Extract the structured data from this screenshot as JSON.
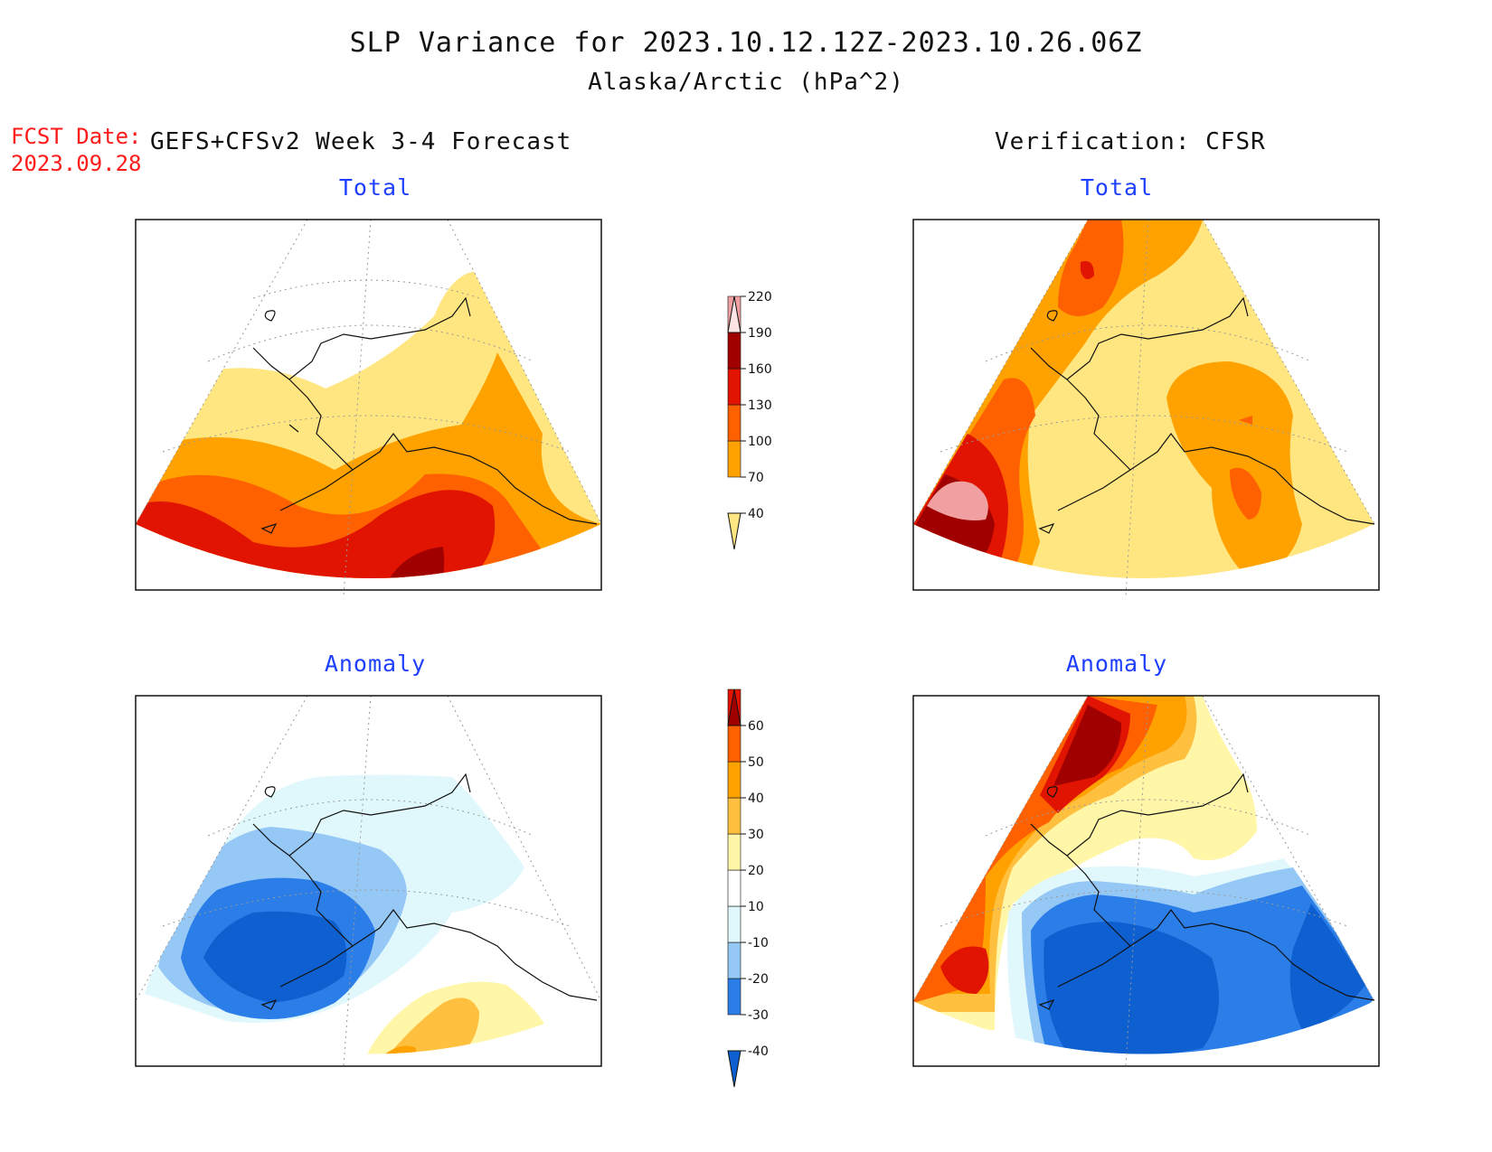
{
  "header": {
    "title": "SLP Variance for 2023.10.12.12Z-2023.10.26.06Z",
    "subtitle": "Alaska/Arctic (hPa^2)",
    "fcst_date_label": "FCST Date:",
    "fcst_date_value": "2023.09.28",
    "left_heading": "GEFS+CFSv2 Week 3-4 Forecast",
    "right_heading": "Verification: CFSR"
  },
  "panels": {
    "forecast_total": "Total",
    "verification_total": "Total",
    "forecast_anomaly": "Anomaly",
    "verification_anomaly": "Anomaly"
  },
  "colorbars": {
    "total": {
      "ticks": [
        "40",
        "70",
        "100",
        "130",
        "160",
        "190",
        "220"
      ],
      "colors": [
        "#ffe680",
        "#ffa200",
        "#ff6000",
        "#e01400",
        "#a00000",
        "#f0a0a0",
        "#fde4e4"
      ]
    },
    "anomaly": {
      "ticks": [
        "-40",
        "-30",
        "-20",
        "-10",
        "10",
        "20",
        "30",
        "40",
        "50",
        "60"
      ],
      "colors": [
        "#0e5fd0",
        "#2b7de8",
        "#96c8f5",
        "#e0f8fc",
        "#ffffff",
        "#fff6a8",
        "#ffc040",
        "#ffa200",
        "#ff6000",
        "#e01400",
        "#a00000"
      ]
    }
  },
  "colors": {
    "red_text": "#ff1a1a",
    "panel_title": "#1f3fff"
  }
}
